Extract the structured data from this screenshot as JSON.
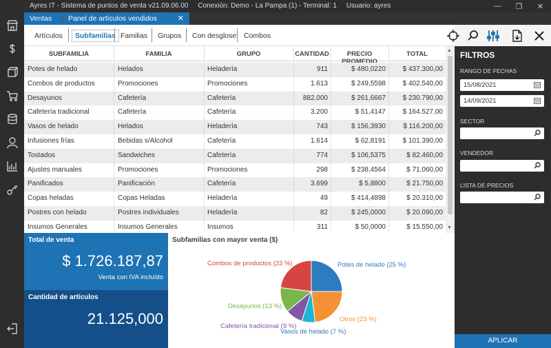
{
  "app": {
    "title": "Ayres IT - Sistema de puntos de venta v21.09.06.00",
    "connection": "Conexión: Demo - La Pampa (1) - Terminal: 1",
    "user": "Usuario: ayres"
  },
  "tabs": [
    {
      "label": "Ventas"
    },
    {
      "label": "Panel de artículos vendidos"
    }
  ],
  "subnav": [
    "Artículos",
    "Subfamilias",
    "Familias",
    "Grupos",
    "Con desglose",
    "Combos"
  ],
  "grid": {
    "headers": [
      "SUBFAMILIA",
      "FAMILIA",
      "GRUPO",
      "CANTIDAD",
      "PRECIO PROMEDIO",
      "TOTAL"
    ],
    "rows": [
      [
        "Potes de helado",
        "Helados",
        "Heladería",
        "911",
        "$  480,0220",
        "$  437.300,00"
      ],
      [
        "Combos de productos",
        "Promociones",
        "Promociones",
        "1.613",
        "$  249,5598",
        "$  402.540,00"
      ],
      [
        "Desayunos",
        "Cafetería",
        "Cafetería",
        "882,000",
        "$  261,6667",
        "$  230.790,00"
      ],
      [
        "Cafetería tradicional",
        "Cafetería",
        "Cafetería",
        "3.200",
        "$  51,4147",
        "$  164.527,00"
      ],
      [
        "Vasos de helado",
        "Helados",
        "Heladería",
        "743",
        "$  156,3930",
        "$  116.200,00"
      ],
      [
        "Infusiones frías",
        "Bebidas s/Alcohol",
        "Cafetería",
        "1.614",
        "$  62,8191",
        "$  101.390,00"
      ],
      [
        "Tostados",
        "Sandwiches",
        "Cafetería",
        "774",
        "$  106,5375",
        "$  82.460,00"
      ],
      [
        "Ajustes manuales",
        "Promociones",
        "Promociones",
        "298",
        "$  238,4564",
        "$  71.060,00"
      ],
      [
        "Panificados",
        "Panificación",
        "Cafetería",
        "3.699",
        "$  5,8800",
        "$  21.750,00"
      ],
      [
        "Copas heladas",
        "Copas Heladas",
        "Heladería",
        "49",
        "$  414,4898",
        "$  20.310,00"
      ],
      [
        "Postres con helado",
        "Postres individuales",
        "Heladería",
        "82",
        "$  245,0000",
        "$  20.090,00"
      ],
      [
        "Insumos Generales",
        "Insumos Generales",
        "Insumos",
        "311",
        "$  50,0000",
        "$  15.550,00"
      ]
    ]
  },
  "kpi": {
    "total_title": "Total de venta",
    "total_value": "$ 1.726.187,87",
    "total_sub": "Venta con IVA incluído",
    "qty_title": "Cantidad de artículos",
    "qty_value": "21.125,000"
  },
  "chart_data": {
    "type": "pie",
    "title": "Subfamilias con mayor venta ($)",
    "slices": [
      {
        "label": "Potes de helado (25 %)",
        "value": 25,
        "color": "#2e7bbf"
      },
      {
        "label": "Otros (23 %)",
        "value": 23,
        "color": "#f39234"
      },
      {
        "label": "Vasos de helado (7 %)",
        "value": 7,
        "color": "#1bb5d6"
      },
      {
        "label": "Cafetería tradicional (9 %)",
        "value": 9,
        "color": "#8157a6"
      },
      {
        "label": "Desayunos (13 %)",
        "value": 13,
        "color": "#7ab648"
      },
      {
        "label": "Combos de productos (23 %)",
        "value": 23,
        "color": "#d64541"
      }
    ]
  },
  "filters": {
    "title": "FILTROS",
    "date_range_label": "RANGO DE FECHAS",
    "date_from": "15/08/2021",
    "date_to": "14/09/2021",
    "sector_label": "SECTOR",
    "vendedor_label": "VENDEDOR",
    "lista_label": "LISTA DE PRECIOS",
    "apply_label": "APLICAR"
  },
  "colors": {
    "accent": "#1e73b4",
    "dark_accent": "#154f8a",
    "sidebar": "#2d2d2d"
  },
  "icons": [
    "store-icon",
    "dollar-icon",
    "box-icon",
    "cart-icon",
    "database-icon",
    "user-icon",
    "chart-icon",
    "keys-icon",
    "logout-icon",
    "target-icon",
    "search-icon",
    "filter-sliders-icon",
    "export-icon",
    "close-icon"
  ]
}
